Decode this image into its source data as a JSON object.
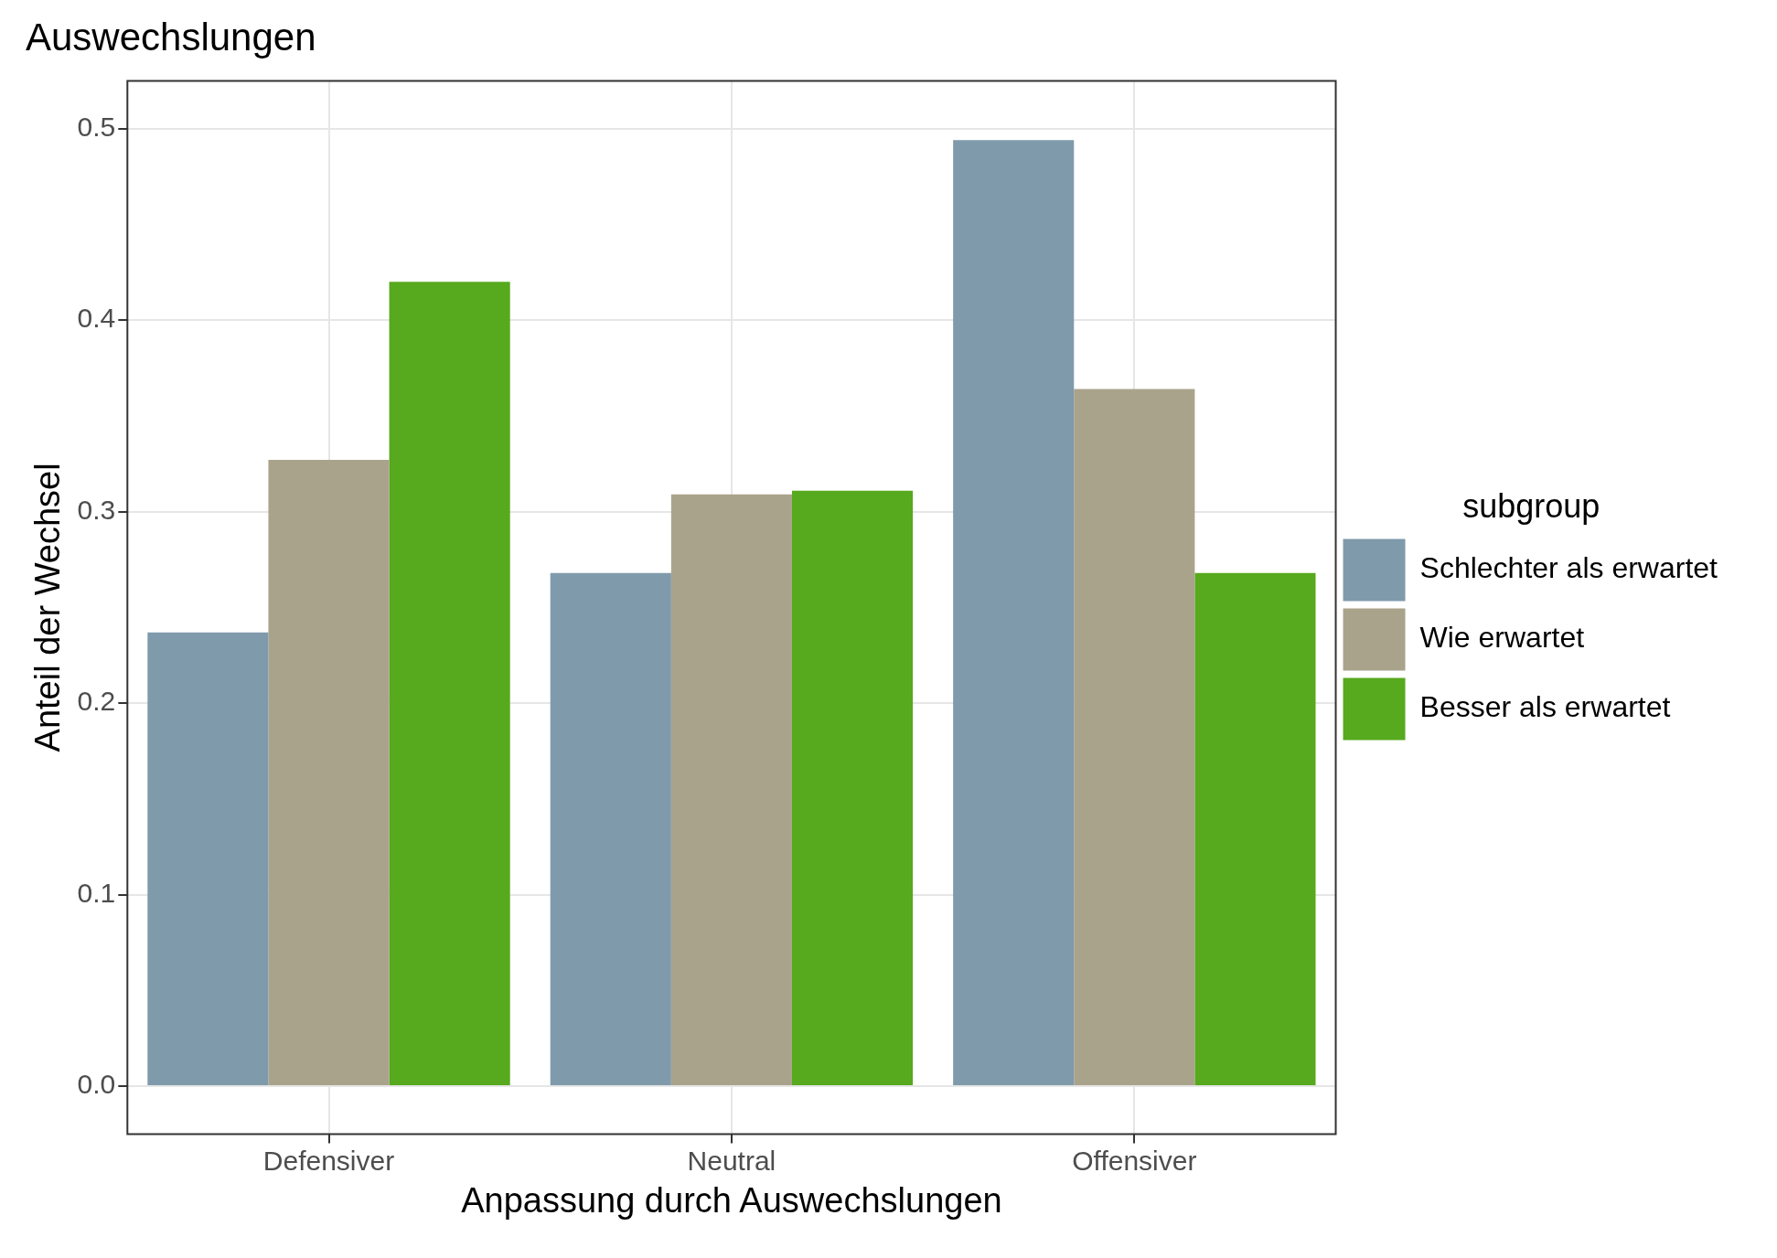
{
  "chart_data": {
    "type": "bar",
    "title": "Auswechslungen",
    "xlabel": "Anpassung durch Auswechslungen",
    "ylabel": "Anteil der Wechsel",
    "legend_title": "subgroup",
    "categories": [
      "Defensiver",
      "Neutral",
      "Offensiver"
    ],
    "series": [
      {
        "name": "Schlechter als erwartet",
        "color": "#7f9aab",
        "values": [
          0.237,
          0.268,
          0.494
        ]
      },
      {
        "name": "Wie erwartet",
        "color": "#aaa38b",
        "values": [
          0.327,
          0.309,
          0.364
        ]
      },
      {
        "name": "Besser als erwartet",
        "color": "#57a91e",
        "values": [
          0.42,
          0.311,
          0.268
        ]
      }
    ],
    "ylim": [
      -0.025,
      0.525
    ],
    "yticks": [
      {
        "value": 0,
        "label": "0.0"
      },
      0.1,
      0.2,
      0.3,
      0.4,
      0.5
    ],
    "grid": true,
    "legend": "right"
  }
}
